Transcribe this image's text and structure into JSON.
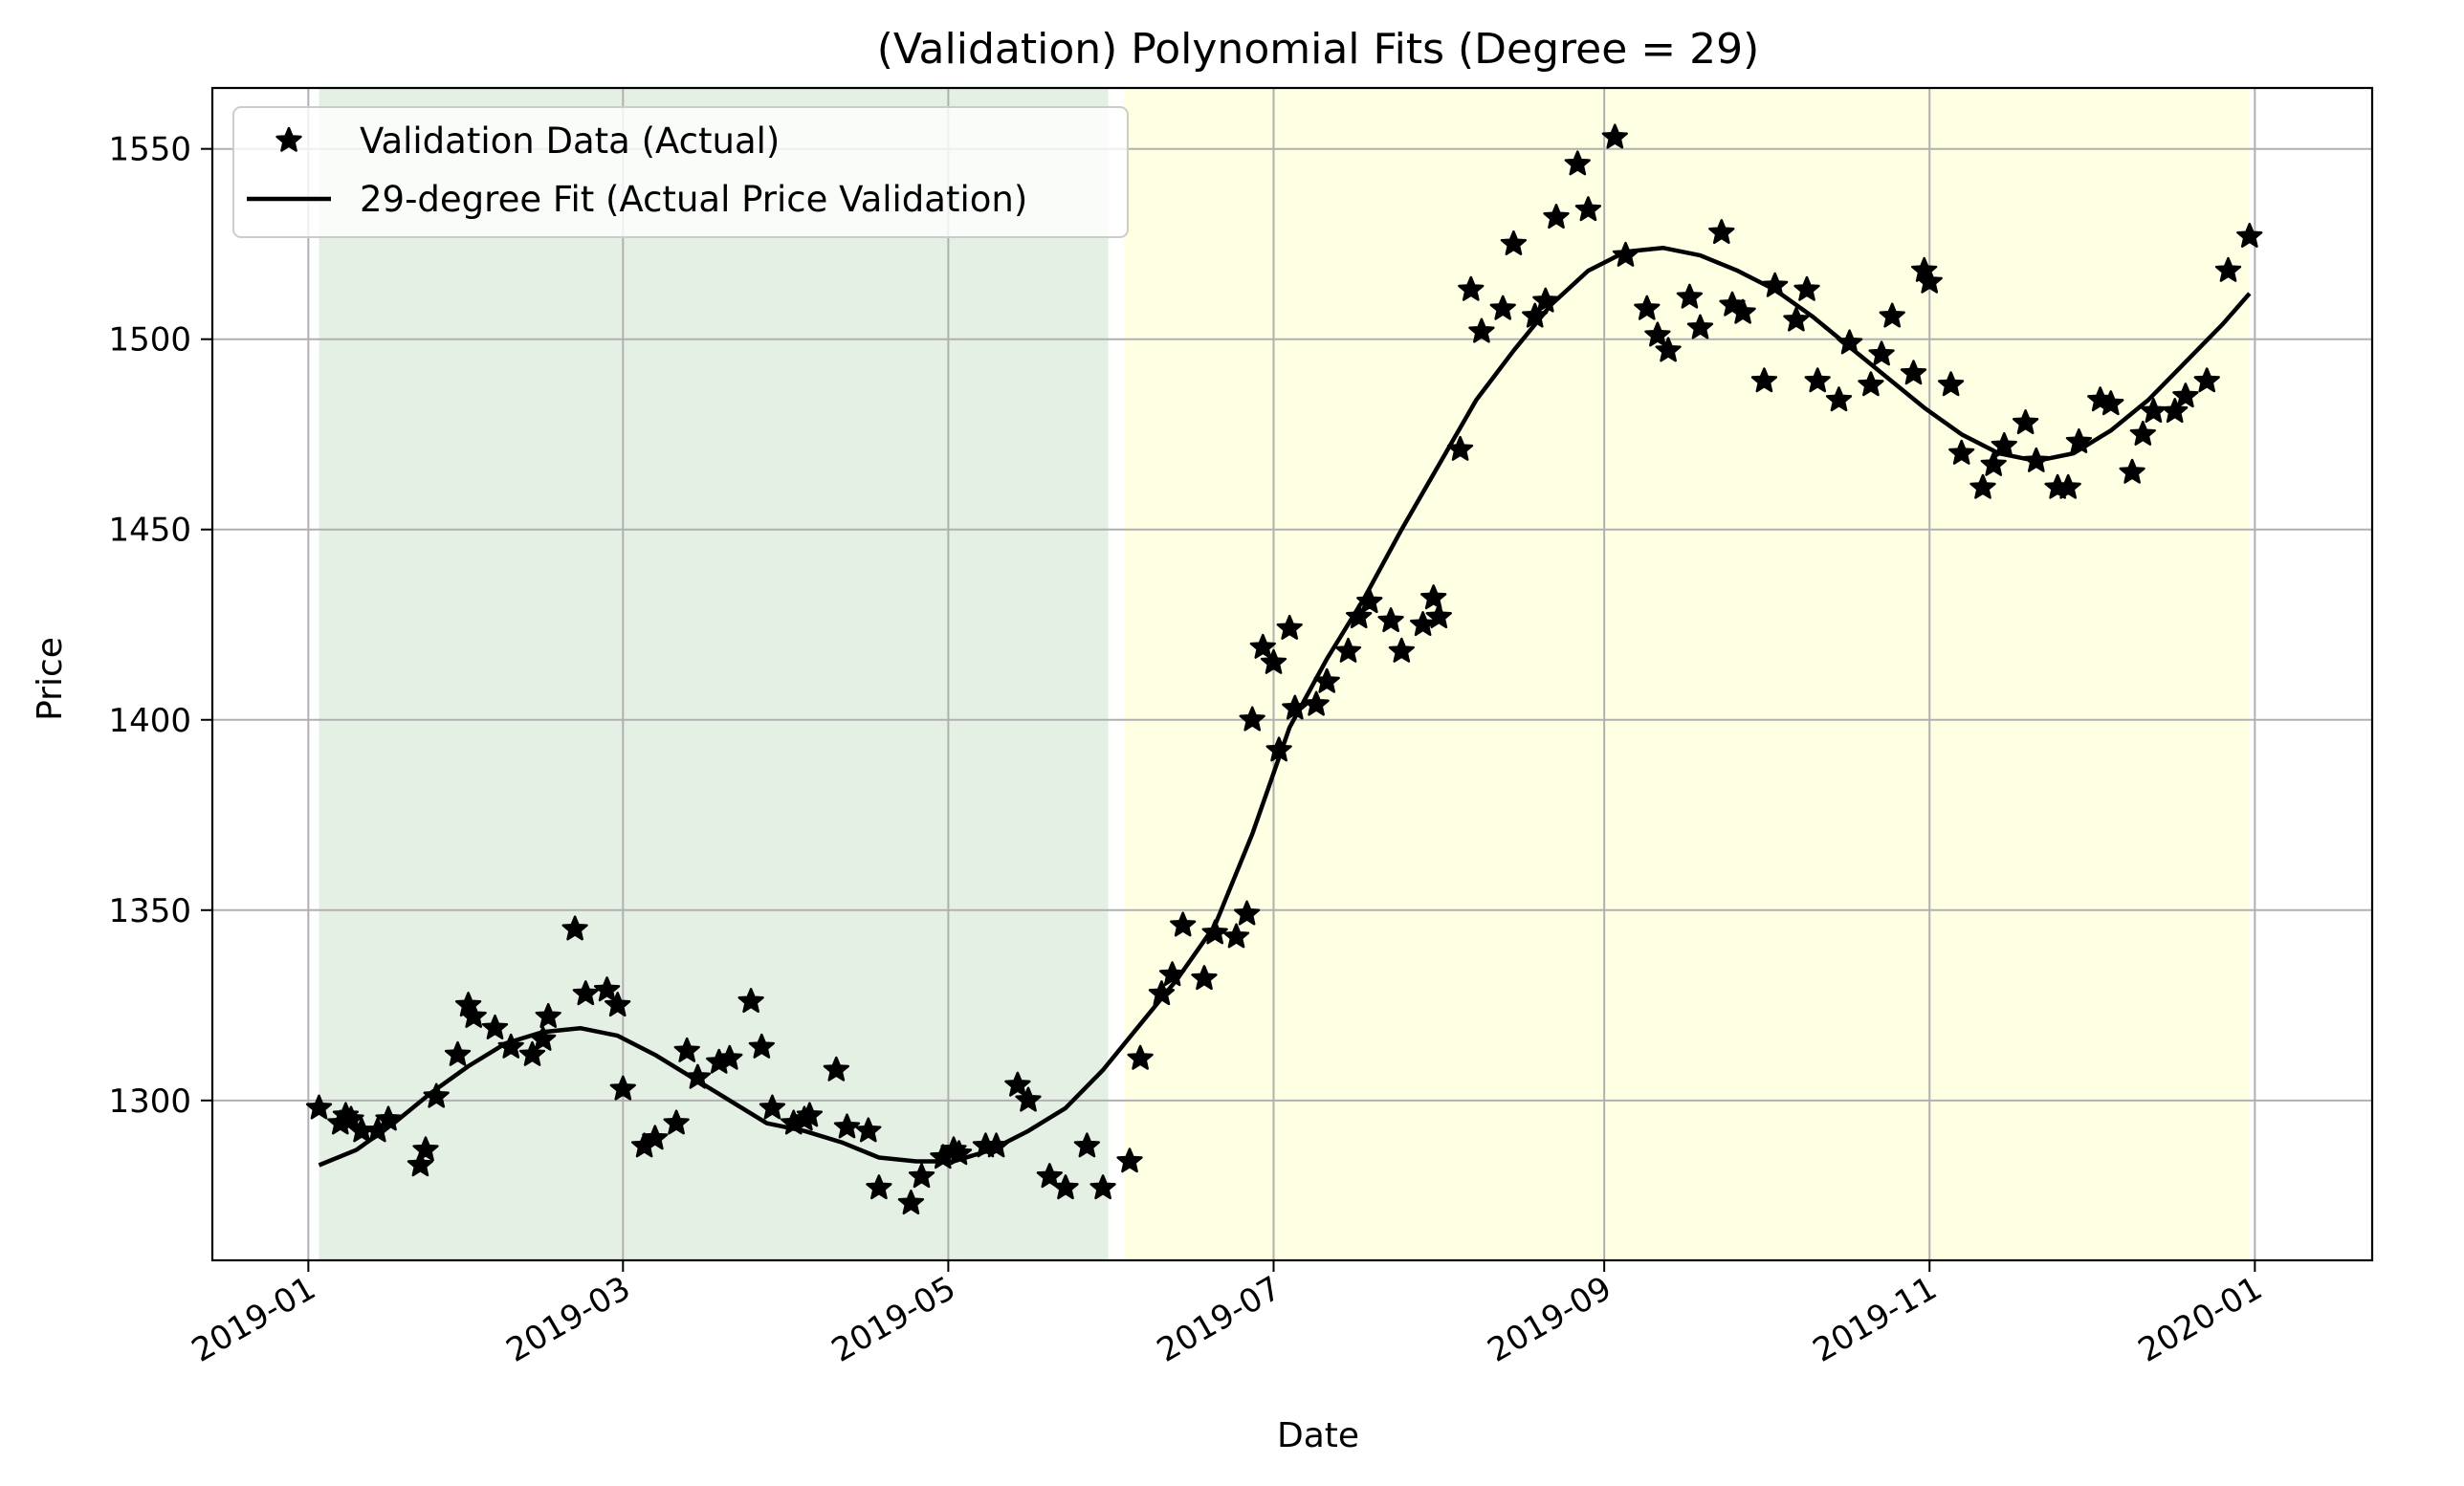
{
  "chart_data": {
    "type": "line",
    "title": "(Validation) Polynomial Fits (Degree = 29)",
    "xlabel": "Date",
    "ylabel": "Price",
    "xlim": [
      "2018-12-14",
      "2020-01-23"
    ],
    "ylim": [
      1258,
      1566
    ],
    "x_ticks": [
      "2019-01",
      "2019-03",
      "2019-05",
      "2019-07",
      "2019-09",
      "2019-11",
      "2020-01"
    ],
    "y_ticks": [
      1300,
      1350,
      1400,
      1450,
      1500,
      1550
    ],
    "grid": true,
    "legend_position": "top-left",
    "shaded_regions": [
      {
        "start": "2019-01-03",
        "end": "2019-05-31",
        "color": "#e5f0e5"
      },
      {
        "start": "2019-06-03",
        "end": "2019-12-31",
        "color": "#ffffe3"
      }
    ],
    "series": [
      {
        "name": "Validation Data (Actual)",
        "style": "markers",
        "marker": "star",
        "color": "#000000",
        "points": [
          [
            "2019-01-03",
            1298
          ],
          [
            "2019-01-07",
            1294
          ],
          [
            "2019-01-08",
            1296
          ],
          [
            "2019-01-09",
            1295
          ],
          [
            "2019-01-11",
            1292
          ],
          [
            "2019-01-14",
            1292
          ],
          [
            "2019-01-16",
            1295
          ],
          [
            "2019-01-22",
            1283
          ],
          [
            "2019-01-23",
            1287
          ],
          [
            "2019-01-25",
            1301
          ],
          [
            "2019-01-29",
            1312
          ],
          [
            "2019-01-31",
            1325
          ],
          [
            "2019-02-01",
            1322
          ],
          [
            "2019-02-05",
            1319
          ],
          [
            "2019-02-08",
            1314
          ],
          [
            "2019-02-12",
            1312
          ],
          [
            "2019-02-14",
            1316
          ],
          [
            "2019-02-15",
            1322
          ],
          [
            "2019-02-20",
            1345
          ],
          [
            "2019-02-22",
            1328
          ],
          [
            "2019-02-26",
            1329
          ],
          [
            "2019-02-28",
            1325
          ],
          [
            "2019-03-01",
            1303
          ],
          [
            "2019-03-05",
            1288
          ],
          [
            "2019-03-07",
            1290
          ],
          [
            "2019-03-11",
            1294
          ],
          [
            "2019-03-13",
            1313
          ],
          [
            "2019-03-15",
            1306
          ],
          [
            "2019-03-19",
            1310
          ],
          [
            "2019-03-21",
            1311
          ],
          [
            "2019-03-25",
            1326
          ],
          [
            "2019-03-27",
            1314
          ],
          [
            "2019-03-29",
            1298
          ],
          [
            "2019-04-02",
            1294
          ],
          [
            "2019-04-04",
            1295
          ],
          [
            "2019-04-05",
            1296
          ],
          [
            "2019-04-10",
            1308
          ],
          [
            "2019-04-12",
            1293
          ],
          [
            "2019-04-16",
            1292
          ],
          [
            "2019-04-18",
            1277
          ],
          [
            "2019-04-24",
            1273
          ],
          [
            "2019-04-26",
            1280
          ],
          [
            "2019-04-30",
            1285
          ],
          [
            "2019-05-02",
            1287
          ],
          [
            "2019-05-03",
            1286
          ],
          [
            "2019-05-08",
            1288
          ],
          [
            "2019-05-10",
            1288
          ],
          [
            "2019-05-14",
            1304
          ],
          [
            "2019-05-16",
            1300
          ],
          [
            "2019-05-20",
            1280
          ],
          [
            "2019-05-23",
            1277
          ],
          [
            "2019-05-27",
            1288
          ],
          [
            "2019-05-30",
            1277
          ],
          [
            "2019-06-04",
            1284
          ],
          [
            "2019-06-06",
            1311
          ],
          [
            "2019-06-10",
            1328
          ],
          [
            "2019-06-12",
            1333
          ],
          [
            "2019-06-14",
            1346
          ],
          [
            "2019-06-18",
            1332
          ],
          [
            "2019-06-20",
            1344
          ],
          [
            "2019-06-24",
            1343
          ],
          [
            "2019-06-26",
            1349
          ],
          [
            "2019-06-27",
            1400
          ],
          [
            "2019-06-29",
            1419
          ],
          [
            "2019-07-01",
            1415
          ],
          [
            "2019-07-02",
            1392
          ],
          [
            "2019-07-04",
            1424
          ],
          [
            "2019-07-05",
            1403
          ],
          [
            "2019-07-09",
            1404
          ],
          [
            "2019-07-11",
            1410
          ],
          [
            "2019-07-15",
            1418
          ],
          [
            "2019-07-17",
            1427
          ],
          [
            "2019-07-19",
            1431
          ],
          [
            "2019-07-23",
            1426
          ],
          [
            "2019-07-25",
            1418
          ],
          [
            "2019-07-29",
            1425
          ],
          [
            "2019-07-31",
            1432
          ],
          [
            "2019-08-01",
            1427
          ],
          [
            "2019-08-05",
            1471
          ],
          [
            "2019-08-07",
            1513
          ],
          [
            "2019-08-09",
            1502
          ],
          [
            "2019-08-13",
            1508
          ],
          [
            "2019-08-15",
            1525
          ],
          [
            "2019-08-19",
            1506
          ],
          [
            "2019-08-21",
            1510
          ],
          [
            "2019-08-23",
            1532
          ],
          [
            "2019-08-27",
            1546
          ],
          [
            "2019-08-29",
            1534
          ],
          [
            "2019-09-03",
            1553
          ],
          [
            "2019-09-05",
            1522
          ],
          [
            "2019-09-09",
            1508
          ],
          [
            "2019-09-11",
            1501
          ],
          [
            "2019-09-13",
            1497
          ],
          [
            "2019-09-17",
            1511
          ],
          [
            "2019-09-19",
            1503
          ],
          [
            "2019-09-23",
            1528
          ],
          [
            "2019-09-25",
            1509
          ],
          [
            "2019-09-27",
            1507
          ],
          [
            "2019-10-01",
            1489
          ],
          [
            "2019-10-03",
            1514
          ],
          [
            "2019-10-07",
            1505
          ],
          [
            "2019-10-09",
            1513
          ],
          [
            "2019-10-11",
            1489
          ],
          [
            "2019-10-15",
            1484
          ],
          [
            "2019-10-17",
            1499
          ],
          [
            "2019-10-21",
            1488
          ],
          [
            "2019-10-23",
            1496
          ],
          [
            "2019-10-25",
            1506
          ],
          [
            "2019-10-29",
            1491
          ],
          [
            "2019-10-31",
            1518
          ],
          [
            "2019-11-01",
            1515
          ],
          [
            "2019-11-05",
            1488
          ],
          [
            "2019-11-07",
            1470
          ],
          [
            "2019-11-11",
            1461
          ],
          [
            "2019-11-13",
            1467
          ],
          [
            "2019-11-15",
            1472
          ],
          [
            "2019-11-19",
            1478
          ],
          [
            "2019-11-21",
            1468
          ],
          [
            "2019-11-25",
            1461
          ],
          [
            "2019-11-27",
            1461
          ],
          [
            "2019-11-29",
            1473
          ],
          [
            "2019-12-03",
            1484
          ],
          [
            "2019-12-05",
            1483
          ],
          [
            "2019-12-09",
            1465
          ],
          [
            "2019-12-11",
            1475
          ],
          [
            "2019-12-13",
            1481
          ],
          [
            "2019-12-17",
            1481
          ],
          [
            "2019-12-19",
            1485
          ],
          [
            "2019-12-23",
            1489
          ],
          [
            "2019-12-27",
            1518
          ],
          [
            "2019-12-31",
            1527
          ]
        ]
      },
      {
        "name": "29-degree Fit (Actual Price Validation)",
        "style": "line",
        "color": "#000000",
        "points": [
          [
            "2019-01-03",
            1283
          ],
          [
            "2019-01-10",
            1287
          ],
          [
            "2019-01-17",
            1294
          ],
          [
            "2019-01-24",
            1302
          ],
          [
            "2019-01-31",
            1309
          ],
          [
            "2019-02-07",
            1315
          ],
          [
            "2019-02-14",
            1318
          ],
          [
            "2019-02-21",
            1319
          ],
          [
            "2019-02-28",
            1317
          ],
          [
            "2019-03-07",
            1312
          ],
          [
            "2019-03-14",
            1306
          ],
          [
            "2019-03-21",
            1300
          ],
          [
            "2019-03-28",
            1294
          ],
          [
            "2019-04-04",
            1292
          ],
          [
            "2019-04-11",
            1289
          ],
          [
            "2019-04-18",
            1285
          ],
          [
            "2019-04-25",
            1284
          ],
          [
            "2019-05-02",
            1284
          ],
          [
            "2019-05-09",
            1287
          ],
          [
            "2019-05-16",
            1292
          ],
          [
            "2019-05-23",
            1298
          ],
          [
            "2019-05-30",
            1308
          ],
          [
            "2019-06-06",
            1320
          ],
          [
            "2019-06-13",
            1332
          ],
          [
            "2019-06-20",
            1346
          ],
          [
            "2019-06-27",
            1370
          ],
          [
            "2019-07-04",
            1398
          ],
          [
            "2019-07-11",
            1416
          ],
          [
            "2019-07-18",
            1432
          ],
          [
            "2019-07-25",
            1450
          ],
          [
            "2019-08-01",
            1467
          ],
          [
            "2019-08-08",
            1484
          ],
          [
            "2019-08-15",
            1497
          ],
          [
            "2019-08-22",
            1509
          ],
          [
            "2019-08-29",
            1518
          ],
          [
            "2019-09-05",
            1523
          ],
          [
            "2019-09-12",
            1524
          ],
          [
            "2019-09-19",
            1522
          ],
          [
            "2019-09-26",
            1518
          ],
          [
            "2019-10-03",
            1513
          ],
          [
            "2019-10-10",
            1506
          ],
          [
            "2019-10-17",
            1498
          ],
          [
            "2019-10-24",
            1490
          ],
          [
            "2019-10-31",
            1482
          ],
          [
            "2019-11-07",
            1475
          ],
          [
            "2019-11-14",
            1470
          ],
          [
            "2019-11-21",
            1468
          ],
          [
            "2019-11-28",
            1470
          ],
          [
            "2019-12-05",
            1476
          ],
          [
            "2019-12-12",
            1484
          ],
          [
            "2019-12-19",
            1494
          ],
          [
            "2019-12-26",
            1504
          ],
          [
            "2019-12-31",
            1512
          ]
        ]
      }
    ]
  }
}
